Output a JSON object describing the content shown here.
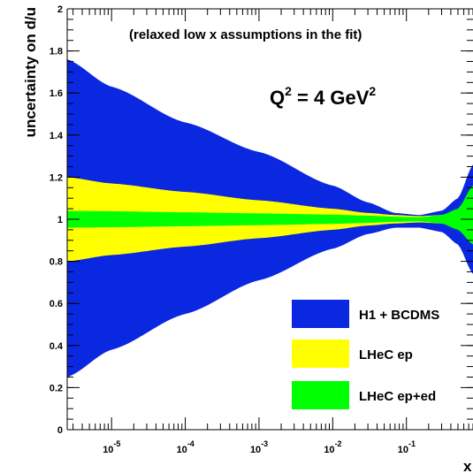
{
  "chart_data": {
    "type": "area",
    "title": "(relaxed low x assumptions in the fit)",
    "annotation": {
      "base": "Q",
      "sup1": "2",
      "mid": " = 4 GeV",
      "sup2": "2"
    },
    "xlabel": "x",
    "ylabel": "uncertainty on d/u",
    "xscale": "log",
    "xlim": [
      2.5e-06,
      0.8
    ],
    "ylim": [
      0,
      2
    ],
    "yticks": [
      0,
      0.2,
      0.4,
      0.6,
      0.8,
      1,
      1.2,
      1.4,
      1.6,
      1.8,
      2
    ],
    "ytick_labels": [
      "0",
      "0.2",
      "0.4",
      "0.6",
      "0.8",
      "1",
      "1.2",
      "1.4",
      "1.6",
      "1.8",
      "2"
    ],
    "xticks": [
      {
        "value": 1e-05,
        "base": "10",
        "exp": "-5"
      },
      {
        "value": 0.0001,
        "base": "10",
        "exp": "-4"
      },
      {
        "value": 0.001,
        "base": "10",
        "exp": "-3"
      },
      {
        "value": 0.01,
        "base": "10",
        "exp": "-2"
      },
      {
        "value": 0.1,
        "base": "10",
        "exp": "-1"
      }
    ],
    "legend_position": "bottom-right",
    "series": [
      {
        "name": "H1 + BCDMS",
        "color": "#0a28e0",
        "x": [
          2.5e-06,
          1e-05,
          0.0001,
          0.001,
          0.01,
          0.03,
          0.07,
          0.15,
          0.3,
          0.5,
          0.8
        ],
        "upper": [
          1.76,
          1.63,
          1.46,
          1.32,
          1.16,
          1.08,
          1.03,
          1.02,
          1.04,
          1.1,
          1.26
        ],
        "lower": [
          0.25,
          0.38,
          0.55,
          0.71,
          0.86,
          0.93,
          0.96,
          0.96,
          0.94,
          0.88,
          0.74
        ]
      },
      {
        "name": "LHeC ep",
        "color": "#ffff00",
        "x": [
          2.5e-06,
          1e-05,
          0.0001,
          0.001,
          0.01,
          0.03,
          0.07,
          0.15,
          0.3,
          0.5,
          0.8
        ],
        "upper": [
          1.2,
          1.17,
          1.13,
          1.09,
          1.05,
          1.03,
          1.02,
          1.015,
          1.02,
          1.03,
          1.05
        ],
        "lower": [
          0.8,
          0.83,
          0.87,
          0.91,
          0.95,
          0.97,
          0.98,
          0.985,
          0.98,
          0.97,
          0.95
        ]
      },
      {
        "name": "LHeC ep+ed",
        "color": "#00ff00",
        "x": [
          2.5e-06,
          1e-05,
          0.0001,
          0.001,
          0.01,
          0.03,
          0.07,
          0.15,
          0.3,
          0.5,
          0.8
        ],
        "upper": [
          1.04,
          1.038,
          1.033,
          1.028,
          1.022,
          1.017,
          1.012,
          1.01,
          1.02,
          1.05,
          1.16
        ],
        "lower": [
          0.96,
          0.962,
          0.967,
          0.972,
          0.978,
          0.983,
          0.988,
          0.99,
          0.98,
          0.95,
          0.88
        ]
      }
    ]
  }
}
